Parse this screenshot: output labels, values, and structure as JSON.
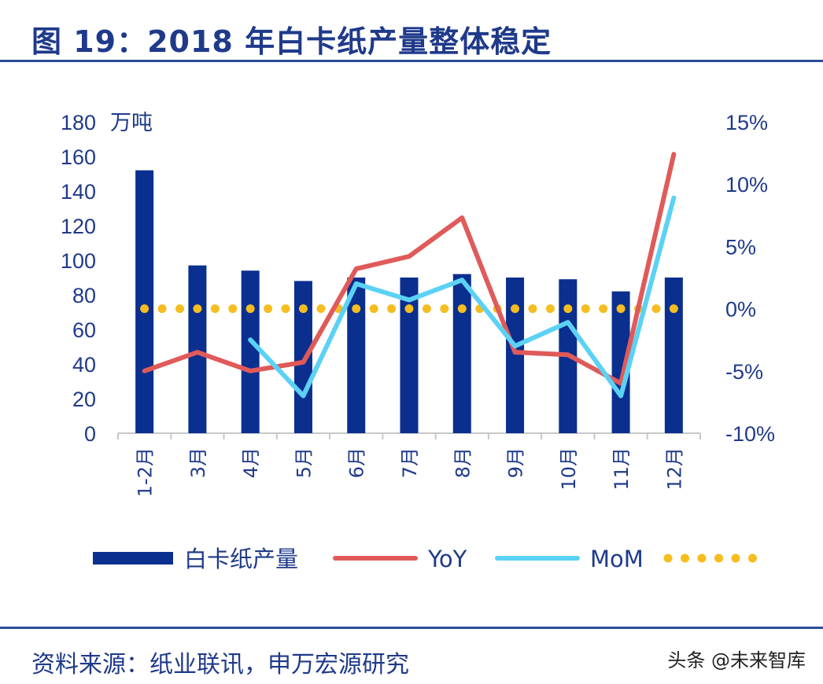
{
  "header": {
    "title": "图 19：2018 年白卡纸产量整体稳定"
  },
  "footer": {
    "source": "资料来源：纸业联讯，申万宏源研究",
    "watermark": "头条 @未来智库"
  },
  "colors": {
    "bar": "#0a2f8f",
    "yoy": "#e05a5a",
    "mom": "#5bd2f5",
    "zero": "#f5bd1f",
    "text": "#1f3a8a"
  },
  "chart_data": {
    "type": "bar",
    "categories": [
      "1-2月",
      "3月",
      "4月",
      "5月",
      "6月",
      "7月",
      "8月",
      "9月",
      "10月",
      "11月",
      "12月"
    ],
    "y_left": {
      "unit": "万吨",
      "ylim": [
        0,
        180
      ],
      "ticks": [
        "0",
        "20",
        "40",
        "60",
        "80",
        "100",
        "120",
        "140",
        "160",
        "180"
      ]
    },
    "y_right": {
      "ylim": [
        -10,
        15
      ],
      "ticks": [
        "-10%",
        "-5%",
        "0%",
        "5%",
        "10%",
        "15%"
      ]
    },
    "series": [
      {
        "name": "白卡纸产量",
        "type": "bar",
        "axis": "left",
        "values": [
          152,
          97,
          94,
          88,
          90,
          90,
          92,
          90,
          89,
          82,
          90
        ]
      },
      {
        "name": "YoY",
        "type": "line",
        "axis": "right",
        "values": [
          -5.0,
          -3.5,
          -5.0,
          -4.3,
          3.2,
          4.2,
          7.3,
          -3.5,
          -3.7,
          -6.0,
          12.4
        ]
      },
      {
        "name": "MoM",
        "type": "line",
        "axis": "right",
        "values": [
          null,
          null,
          -2.5,
          -7.0,
          2.0,
          0.7,
          2.3,
          -3.0,
          -1.1,
          -7.0,
          8.9
        ]
      },
      {
        "name": "",
        "type": "dotted-line",
        "axis": "right",
        "values": [
          0,
          0,
          0,
          0,
          0,
          0,
          0,
          0,
          0,
          0,
          0
        ]
      }
    ],
    "legend": {
      "placement": "bottom"
    },
    "grid": false
  }
}
